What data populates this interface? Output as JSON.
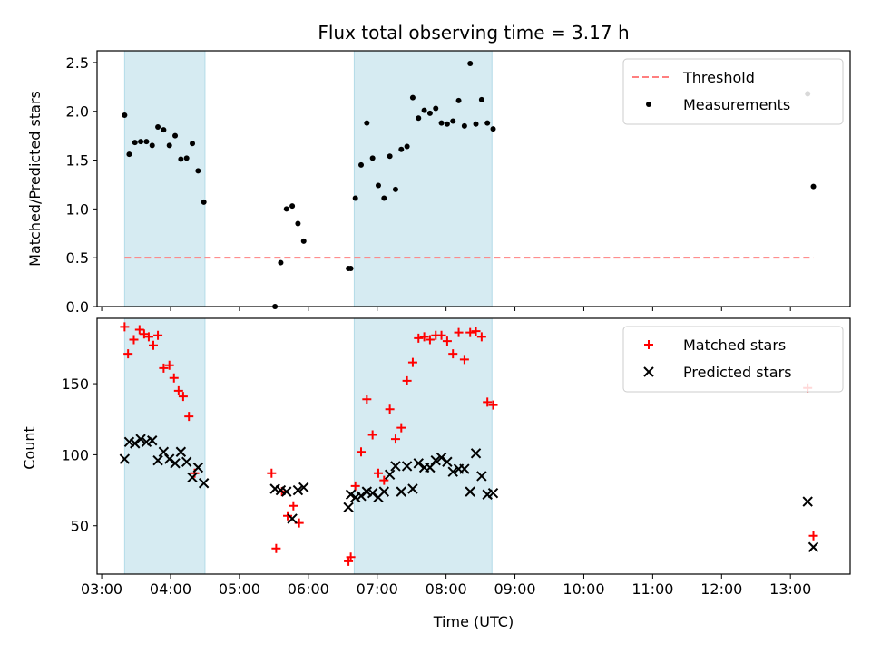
{
  "chart_data": [
    {
      "type": "scatter",
      "title": "Flux total observing time = 3.17 h",
      "xlabel": "",
      "ylabel": "Matched/Predicted stars",
      "xlim": [
        "02:56",
        "13:52"
      ],
      "ylim": [
        0,
        2.62
      ],
      "yticks": [
        "0.0",
        "0.5",
        "1.0",
        "1.5",
        "2.0",
        "2.5"
      ],
      "ytick_values": [
        0,
        0.5,
        1.0,
        1.5,
        2.0,
        2.5
      ],
      "legend_position": "top-right",
      "shaded_spans": [
        {
          "start": "03:20",
          "end": "04:30"
        },
        {
          "start": "06:40",
          "end": "08:40"
        }
      ],
      "threshold": {
        "name": "Threshold",
        "y": 0.5,
        "x_start": "03:20",
        "x_end": "13:20",
        "color": "#ff7f7f"
      },
      "series": [
        {
          "name": "Measurements",
          "color": "#000000",
          "points": [
            [
              "03:20",
              1.96
            ],
            [
              "03:24",
              1.56
            ],
            [
              "03:29",
              1.68
            ],
            [
              "03:34",
              1.69
            ],
            [
              "03:39",
              1.69
            ],
            [
              "03:44",
              1.65
            ],
            [
              "03:49",
              1.84
            ],
            [
              "03:54",
              1.81
            ],
            [
              "03:59",
              1.65
            ],
            [
              "04:04",
              1.75
            ],
            [
              "04:09",
              1.51
            ],
            [
              "04:14",
              1.52
            ],
            [
              "04:19",
              1.67
            ],
            [
              "04:24",
              1.39
            ],
            [
              "04:29",
              1.07
            ],
            [
              "05:31",
              0.0
            ],
            [
              "05:36",
              0.45
            ],
            [
              "05:41",
              1.0
            ],
            [
              "05:46",
              1.03
            ],
            [
              "05:51",
              0.85
            ],
            [
              "05:56",
              0.67
            ],
            [
              "06:35",
              0.39
            ],
            [
              "06:37",
              0.39
            ],
            [
              "06:41",
              1.11
            ],
            [
              "06:46",
              1.45
            ],
            [
              "06:51",
              1.88
            ],
            [
              "06:56",
              1.52
            ],
            [
              "07:01",
              1.24
            ],
            [
              "07:06",
              1.11
            ],
            [
              "07:11",
              1.54
            ],
            [
              "07:16",
              1.2
            ],
            [
              "07:21",
              1.61
            ],
            [
              "07:26",
              1.64
            ],
            [
              "07:31",
              2.14
            ],
            [
              "07:36",
              1.93
            ],
            [
              "07:41",
              2.01
            ],
            [
              "07:46",
              1.98
            ],
            [
              "07:51",
              2.03
            ],
            [
              "07:56",
              1.88
            ],
            [
              "08:01",
              1.87
            ],
            [
              "08:06",
              1.9
            ],
            [
              "08:11",
              2.11
            ],
            [
              "08:16",
              1.85
            ],
            [
              "08:21",
              2.49
            ],
            [
              "08:26",
              1.87
            ],
            [
              "08:31",
              2.12
            ],
            [
              "08:36",
              1.88
            ],
            [
              "08:41",
              1.82
            ],
            [
              "13:15",
              2.18
            ],
            [
              "13:20",
              1.23
            ]
          ]
        }
      ]
    },
    {
      "type": "scatter",
      "title": "",
      "xlabel": "Time (UTC)",
      "ylabel": "Count",
      "xlim": [
        "02:56",
        "13:52"
      ],
      "ylim": [
        16,
        196
      ],
      "yticks": [
        "50",
        "100",
        "150"
      ],
      "ytick_values": [
        50,
        100,
        150
      ],
      "xticks": [
        "03:00",
        "04:00",
        "05:00",
        "06:00",
        "07:00",
        "08:00",
        "09:00",
        "10:00",
        "11:00",
        "12:00",
        "13:00"
      ],
      "legend_position": "top-right",
      "shaded_spans": [
        {
          "start": "03:20",
          "end": "04:30"
        },
        {
          "start": "06:40",
          "end": "08:40"
        }
      ],
      "series": [
        {
          "name": "Matched stars",
          "marker": "plus",
          "color": "#ff0000",
          "points": [
            [
              "03:20",
              190
            ],
            [
              "03:23",
              171
            ],
            [
              "03:28",
              181
            ],
            [
              "03:33",
              188
            ],
            [
              "03:37",
              185
            ],
            [
              "03:41",
              183
            ],
            [
              "03:45",
              177
            ],
            [
              "03:49",
              184
            ],
            [
              "03:54",
              161
            ],
            [
              "03:59",
              163
            ],
            [
              "04:03",
              154
            ],
            [
              "04:07",
              145
            ],
            [
              "04:11",
              141
            ],
            [
              "04:16",
              127
            ],
            [
              "04:21",
              87
            ],
            [
              "05:28",
              87
            ],
            [
              "05:32",
              34
            ],
            [
              "05:37",
              74
            ],
            [
              "05:42",
              57
            ],
            [
              "05:47",
              64
            ],
            [
              "05:52",
              52
            ],
            [
              "06:35",
              25
            ],
            [
              "06:37",
              28
            ],
            [
              "06:41",
              78
            ],
            [
              "06:46",
              102
            ],
            [
              "06:51",
              139
            ],
            [
              "06:56",
              114
            ],
            [
              "07:01",
              87
            ],
            [
              "07:06",
              82
            ],
            [
              "07:11",
              132
            ],
            [
              "07:16",
              111
            ],
            [
              "07:21",
              119
            ],
            [
              "07:26",
              152
            ],
            [
              "07:31",
              165
            ],
            [
              "07:36",
              182
            ],
            [
              "07:41",
              183
            ],
            [
              "07:46",
              181
            ],
            [
              "07:51",
              184
            ],
            [
              "07:56",
              184
            ],
            [
              "08:01",
              180
            ],
            [
              "08:06",
              171
            ],
            [
              "08:11",
              186
            ],
            [
              "08:16",
              167
            ],
            [
              "08:21",
              186
            ],
            [
              "08:26",
              187
            ],
            [
              "08:31",
              183
            ],
            [
              "08:36",
              137
            ],
            [
              "08:41",
              135
            ],
            [
              "13:15",
              147
            ],
            [
              "13:20",
              43
            ]
          ]
        },
        {
          "name": "Predicted stars",
          "marker": "x",
          "color": "#000000",
          "points": [
            [
              "03:20",
              97
            ],
            [
              "03:24",
              109
            ],
            [
              "03:29",
              108
            ],
            [
              "03:34",
              111
            ],
            [
              "03:39",
              109
            ],
            [
              "03:44",
              110
            ],
            [
              "03:49",
              96
            ],
            [
              "03:54",
              102
            ],
            [
              "03:59",
              97
            ],
            [
              "04:04",
              94
            ],
            [
              "04:09",
              102
            ],
            [
              "04:14",
              95
            ],
            [
              "04:19",
              84
            ],
            [
              "04:24",
              91
            ],
            [
              "04:29",
              80
            ],
            [
              "05:31",
              76
            ],
            [
              "05:36",
              75
            ],
            [
              "05:41",
              74
            ],
            [
              "05:46",
              55
            ],
            [
              "05:51",
              75
            ],
            [
              "05:56",
              77
            ],
            [
              "06:35",
              63
            ],
            [
              "06:37",
              72
            ],
            [
              "06:41",
              70
            ],
            [
              "06:46",
              71
            ],
            [
              "06:51",
              74
            ],
            [
              "06:56",
              73
            ],
            [
              "07:01",
              70
            ],
            [
              "07:06",
              74
            ],
            [
              "07:11",
              86
            ],
            [
              "07:16",
              92
            ],
            [
              "07:21",
              74
            ],
            [
              "07:26",
              92
            ],
            [
              "07:31",
              76
            ],
            [
              "07:36",
              94
            ],
            [
              "07:41",
              91
            ],
            [
              "07:46",
              91
            ],
            [
              "07:51",
              96
            ],
            [
              "07:56",
              98
            ],
            [
              "08:01",
              95
            ],
            [
              "08:06",
              88
            ],
            [
              "08:11",
              90
            ],
            [
              "08:16",
              90
            ],
            [
              "08:21",
              74
            ],
            [
              "08:26",
              101
            ],
            [
              "08:31",
              85
            ],
            [
              "08:36",
              72
            ],
            [
              "08:41",
              73
            ],
            [
              "13:15",
              67
            ],
            [
              "13:20",
              35
            ]
          ]
        }
      ]
    }
  ]
}
